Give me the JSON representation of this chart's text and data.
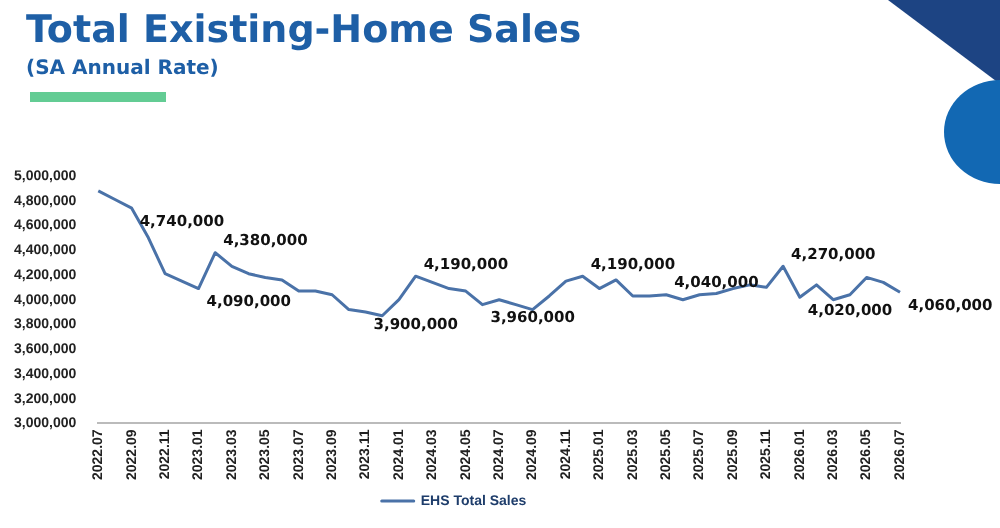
{
  "chart_data": {
    "type": "line",
    "title": "Total Existing-Home Sales",
    "subtitle": "(SA Annual Rate)",
    "categories": [
      "2022.07",
      null,
      "2022.09",
      null,
      "2022.11",
      null,
      "2023.01",
      null,
      "2023.03",
      null,
      "2023.05",
      null,
      "2023.07",
      null,
      "2023.09",
      null,
      "2023.11",
      null,
      "2024.01",
      null,
      "2024.03",
      null,
      "2024.05",
      null,
      "2024.07",
      null,
      "2024.09",
      null,
      "2024.11",
      null,
      "2025.01",
      null,
      "2025.03",
      null,
      "2025.05",
      null,
      "2025.07",
      null,
      "2025.09",
      null,
      "2025.11",
      null,
      "2026.01",
      null,
      "2026.03",
      null,
      "2026.05",
      null,
      "2026.07"
    ],
    "series": [
      {
        "name": "EHS Total Sales",
        "color": "#4a72a8",
        "values": [
          4880000,
          4810000,
          4740000,
          4500000,
          4210000,
          4150000,
          4090000,
          4380000,
          4270000,
          4210000,
          4180000,
          4160000,
          4070000,
          4070000,
          4040000,
          3920000,
          3900000,
          3870000,
          4000000,
          4190000,
          4140000,
          4090000,
          4070000,
          3960000,
          4000000,
          3960000,
          3920000,
          4030000,
          4150000,
          4190000,
          4090000,
          4160000,
          4030000,
          4030000,
          4040000,
          4000000,
          4040000,
          4050000,
          4090000,
          4120000,
          4100000,
          4270000,
          4020000,
          4120000,
          4000000,
          4040000,
          4180000,
          4140000,
          4060000
        ],
        "value_labels": [
          null,
          null,
          "4,740,000",
          null,
          null,
          null,
          "4,090,000",
          "4,380,000",
          null,
          null,
          null,
          null,
          null,
          null,
          null,
          null,
          "3,900,000",
          null,
          null,
          "4,190,000",
          null,
          null,
          null,
          "3,960,000",
          null,
          null,
          null,
          null,
          null,
          "4,190,000",
          null,
          null,
          null,
          null,
          "4,040,000",
          null,
          null,
          null,
          null,
          null,
          null,
          "4,270,000",
          "4,020,000",
          null,
          null,
          null,
          null,
          null,
          "4,060,000"
        ]
      }
    ],
    "ylim": [
      3000000,
      5000000
    ],
    "yticks": [
      {
        "value": 3000000,
        "label": "3,000,000"
      },
      {
        "value": 3200000,
        "label": "3,200,000"
      },
      {
        "value": 3400000,
        "label": "3,400,000"
      },
      {
        "value": 3600000,
        "label": "3,600,000"
      },
      {
        "value": 3800000,
        "label": "3,800,000"
      },
      {
        "value": 4000000,
        "label": "4,000,000"
      },
      {
        "value": 4200000,
        "label": "4,200,000"
      },
      {
        "value": 4400000,
        "label": "4,400,000"
      },
      {
        "value": 4600000,
        "label": "4,600,000"
      },
      {
        "value": 4800000,
        "label": "4,800,000"
      },
      {
        "value": 5000000,
        "label": "5,000,000"
      }
    ],
    "grid": false,
    "legend": "bottom",
    "marker": "none",
    "line_style": "solid"
  }
}
